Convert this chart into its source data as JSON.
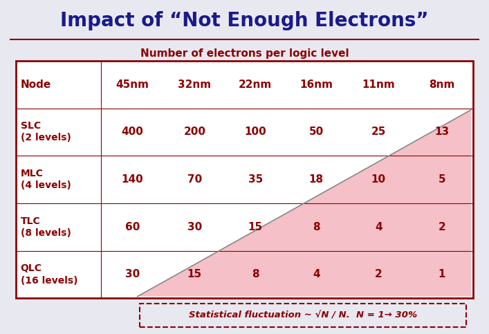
{
  "title": "Impact of “Not Enough Electrons”",
  "subtitle": "Number of electrons per logic level",
  "title_color": "#1a1a8c",
  "subtitle_color": "#8b0000",
  "bg_color": "#e8e8f0",
  "table_bg": "#ffffff",
  "pink_color": "#f5c0c8",
  "border_color": "#8b0000",
  "diag_color": "#888888",
  "header_row": [
    "Node",
    "45nm",
    "32nm",
    "22nm",
    "16nm",
    "11nm",
    "8nm"
  ],
  "rows": [
    [
      "SLC\n(2 levels)",
      "400",
      "200",
      "100",
      "50",
      "25",
      "13"
    ],
    [
      "MLC\n(4 levels)",
      "140",
      "70",
      "35",
      "18",
      "10",
      "5"
    ],
    [
      "TLC\n(8 levels)",
      "60",
      "30",
      "15",
      "8",
      "4",
      "2"
    ],
    [
      "QLC\n(16 levels)",
      "30",
      "15",
      "8",
      "4",
      "2",
      "1"
    ]
  ],
  "footer_text": "Statistical fluctuation ~ √N / N.  N = 1→ 30%",
  "text_color": "#8b0000",
  "header_text_color": "#8b0000"
}
